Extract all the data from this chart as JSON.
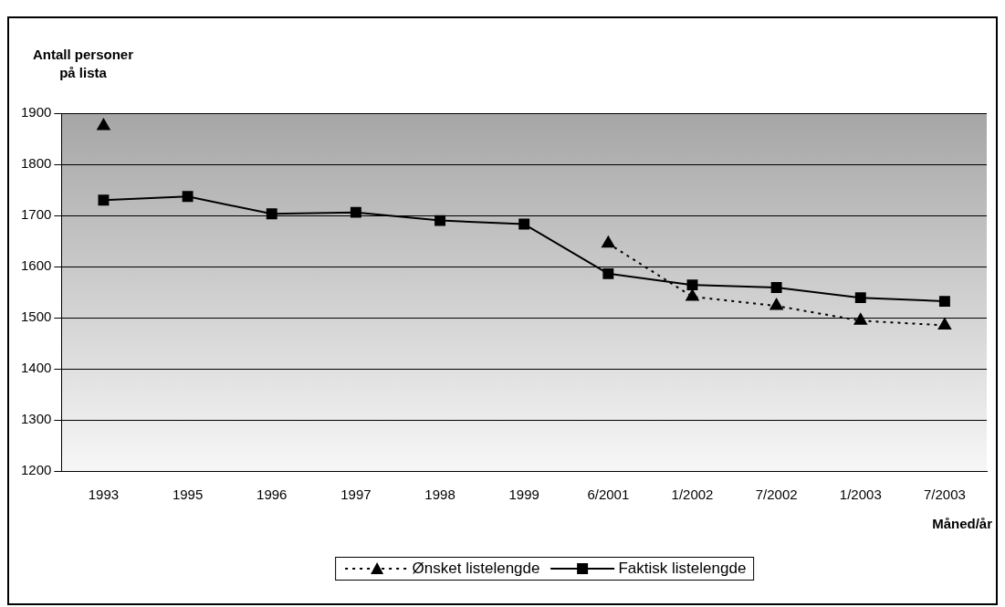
{
  "chart_data": {
    "type": "line",
    "ylabel": "Antall personer\npå lista",
    "xlabel": "Måned/år",
    "categories": [
      "1993",
      "1995",
      "1996",
      "1997",
      "1998",
      "1999",
      "6/2001",
      "1/2002",
      "7/2002",
      "1/2003",
      "7/2003"
    ],
    "series": [
      {
        "name": "Ønsket listelengde",
        "color": "#000000",
        "marker": "triangle",
        "line_style": "dotted",
        "values": [
          1875,
          null,
          null,
          null,
          null,
          null,
          1645,
          1541,
          1523,
          1494,
          1485
        ]
      },
      {
        "name": "Faktisk listelengde",
        "color": "#000000",
        "marker": "square",
        "line_style": "solid",
        "values": [
          1730,
          1737,
          1703,
          1706,
          1690,
          1683,
          1586,
          1564,
          1559,
          1539,
          1532
        ]
      }
    ],
    "ylim": [
      1200,
      1900
    ],
    "yticks": [
      1200,
      1300,
      1400,
      1500,
      1600,
      1700,
      1800,
      1900
    ],
    "grid": "y",
    "legend": "bottom"
  }
}
